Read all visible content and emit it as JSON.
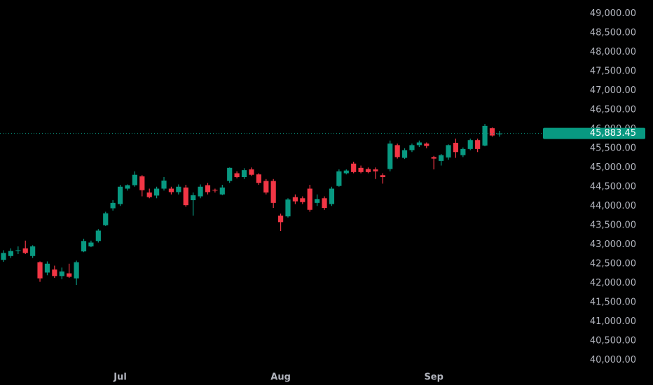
{
  "chart_data": {
    "type": "candlestick",
    "categories": [
      null,
      null,
      null,
      null,
      null,
      null,
      null,
      null,
      null,
      null,
      null,
      null,
      null,
      null,
      null,
      null,
      "Jul",
      null,
      null,
      null,
      null,
      null,
      null,
      null,
      null,
      null,
      null,
      null,
      null,
      null,
      null,
      null,
      null,
      null,
      null,
      null,
      null,
      null,
      "Aug",
      null,
      null,
      null,
      null,
      null,
      null,
      null,
      null,
      null,
      null,
      null,
      null,
      null,
      null,
      null,
      null,
      null,
      null,
      null,
      null,
      "Sep",
      null,
      null,
      null,
      null,
      null,
      null,
      null,
      null,
      null
    ],
    "open": [
      42600,
      42700,
      42830,
      42900,
      42700,
      42540,
      42270,
      42350,
      42180,
      42250,
      42120,
      42820,
      42950,
      43090,
      43500,
      43940,
      44050,
      44450,
      44540,
      44770,
      44350,
      44270,
      44450,
      44450,
      44360,
      44480,
      44150,
      44250,
      44540,
      44420,
      44300,
      44650,
      44850,
      44750,
      44950,
      44820,
      44650,
      44650,
      43750,
      43730,
      44230,
      44200,
      44450,
      44080,
      44200,
      44050,
      44520,
      44850,
      45100,
      44990,
      44960,
      44950,
      44800,
      44960,
      45580,
      45250,
      45450,
      45580,
      45620,
      45270,
      45170,
      45260,
      45640,
      45320,
      45480,
      45710,
      45570,
      46020,
      45860
    ],
    "high": [
      42850,
      42900,
      42950,
      43100,
      42980,
      42560,
      42560,
      42450,
      42400,
      42500,
      42580,
      43150,
      43100,
      43400,
      43850,
      44150,
      44550,
      44560,
      44900,
      44800,
      44450,
      44500,
      44750,
      44500,
      44560,
      44550,
      44350,
      44560,
      44600,
      44450,
      44550,
      45000,
      44900,
      44980,
      45000,
      44850,
      44700,
      44700,
      43800,
      44200,
      44300,
      44250,
      44550,
      44300,
      44250,
      44500,
      44950,
      44950,
      45150,
      45050,
      45000,
      45000,
      44850,
      45700,
      45620,
      45500,
      45620,
      45700,
      45650,
      45300,
      45350,
      45600,
      45750,
      45520,
      45750,
      45750,
      46130,
      46040,
      45950
    ],
    "low": [
      42550,
      42650,
      42750,
      42750,
      42650,
      42030,
      42200,
      42130,
      42100,
      42130,
      41950,
      42800,
      42930,
      43050,
      43480,
      43880,
      44000,
      44400,
      44500,
      44250,
      44200,
      44200,
      44400,
      44300,
      44300,
      43980,
      43750,
      44200,
      44300,
      44350,
      44280,
      44600,
      44720,
      44700,
      44780,
      44550,
      44300,
      43950,
      43350,
      43700,
      44050,
      44050,
      43850,
      44000,
      43900,
      44000,
      44500,
      44820,
      44850,
      44850,
      44850,
      44700,
      44580,
      44900,
      45230,
      45220,
      45400,
      45530,
      45500,
      44950,
      45050,
      45200,
      45250,
      45270,
      45450,
      45400,
      45550,
      45800,
      45800
    ],
    "close": [
      42780,
      42830,
      42850,
      42780,
      42950,
      42120,
      42500,
      42180,
      42300,
      42160,
      42540,
      43090,
      43050,
      43360,
      43810,
      44080,
      44500,
      44540,
      44810,
      44410,
      44230,
      44450,
      44660,
      44360,
      44500,
      44020,
      44280,
      44500,
      44360,
      44400,
      44480,
      44990,
      44750,
      44930,
      44810,
      44600,
      44350,
      44080,
      43580,
      44170,
      44120,
      44100,
      43900,
      44180,
      43950,
      44450,
      44900,
      44920,
      44880,
      44880,
      44880,
      44900,
      44750,
      45620,
      45270,
      45450,
      45580,
      45650,
      45560,
      45230,
      45320,
      45580,
      45400,
      45480,
      45710,
      45480,
      46080,
      45830,
      45883.45
    ],
    "up_color": "#089981",
    "down_color": "#f23645",
    "last_price": {
      "value": 45883.45,
      "label": "45,883.45"
    },
    "ylim": [
      39750,
      49350
    ],
    "yticks": [
      {
        "value": 40000,
        "label": "40,000.00"
      },
      {
        "value": 40500,
        "label": "40,500.00"
      },
      {
        "value": 41000,
        "label": "41,000.00"
      },
      {
        "value": 41500,
        "label": "41,500.00"
      },
      {
        "value": 42000,
        "label": "42,000.00"
      },
      {
        "value": 42500,
        "label": "42,500.00"
      },
      {
        "value": 43000,
        "label": "43,000.00"
      },
      {
        "value": 43500,
        "label": "43,500.00"
      },
      {
        "value": 44000,
        "label": "44,000.00"
      },
      {
        "value": 44500,
        "label": "44,500.00"
      },
      {
        "value": 45000,
        "label": "45,000.00"
      },
      {
        "value": 45500,
        "label": "45,500.00"
      },
      {
        "value": 46000,
        "label": "46,000.00"
      },
      {
        "value": 46500,
        "label": "46,500.00"
      },
      {
        "value": 47000,
        "label": "47,000.00"
      },
      {
        "value": 47500,
        "label": "47,500.00"
      },
      {
        "value": 48000,
        "label": "48,000.00"
      },
      {
        "value": 48500,
        "label": "48,500.00"
      },
      {
        "value": 49000,
        "label": "49,000.00"
      }
    ]
  }
}
